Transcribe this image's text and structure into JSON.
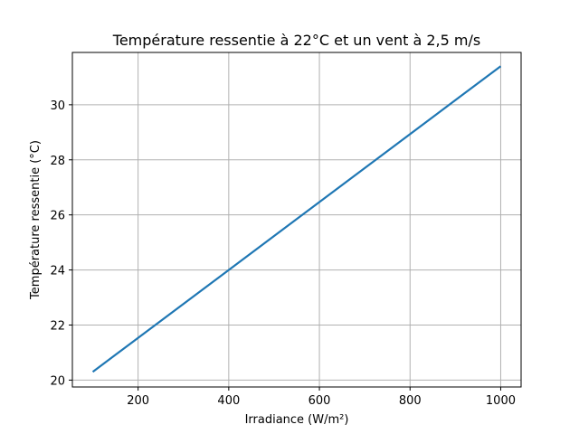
{
  "chart_data": {
    "type": "line",
    "title": "Température ressentie à 22°C et un vent à 2,5 m/s",
    "xlabel": "Irradiance (W/m²)",
    "ylabel": "Température ressentie (°C)",
    "xlim": [
      55,
      1045
    ],
    "ylim": [
      19.75,
      31.9
    ],
    "xticks": [
      200,
      400,
      600,
      800,
      1000
    ],
    "yticks": [
      20,
      22,
      24,
      26,
      28,
      30
    ],
    "grid": true,
    "line_color": "#1f77b4",
    "series": [
      {
        "x": [
          100,
          1000
        ],
        "y": [
          20.3,
          31.4
        ]
      }
    ]
  }
}
